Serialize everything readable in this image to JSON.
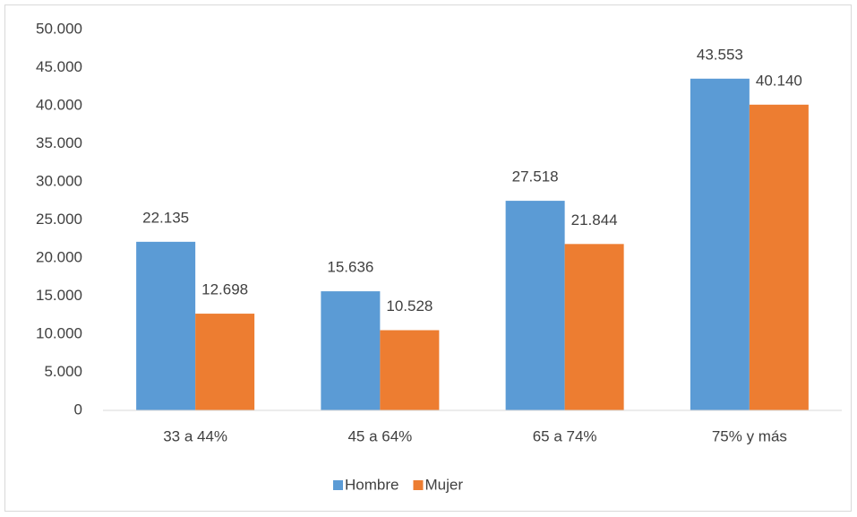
{
  "chart_data": {
    "type": "bar",
    "categories": [
      "33 a 44%",
      "45 a 64%",
      "65 a 74%",
      "75% y más"
    ],
    "series": [
      {
        "name": "Hombre",
        "color": "#5b9bd5",
        "values": [
          22135,
          15636,
          27518,
          43553
        ],
        "value_labels": [
          "22.135",
          "15.636",
          "27.518",
          "43.553"
        ]
      },
      {
        "name": "Mujer",
        "color": "#ed7d31",
        "values": [
          12698,
          10528,
          21844,
          40140
        ],
        "value_labels": [
          "12.698",
          "10.528",
          "21.844",
          "40.140"
        ]
      }
    ],
    "ylim": [
      0,
      50000
    ],
    "yticks": [
      0,
      {
        "value": 5000,
        "label": "5.000"
      },
      {
        "value": 10000,
        "label": "10.000"
      },
      {
        "value": 15000,
        "label": "15.000"
      },
      {
        "value": 20000,
        "label": "20.000"
      },
      {
        "value": 25000,
        "label": "25.000"
      },
      {
        "value": 30000,
        "label": "30.000"
      },
      {
        "value": 35000,
        "label": "35.000"
      },
      {
        "value": 40000,
        "label": "40.000"
      },
      {
        "value": 45000,
        "label": "45.000"
      },
      {
        "value": 50000,
        "label": "50.000"
      }
    ],
    "grid": false,
    "legend": "bottom"
  }
}
